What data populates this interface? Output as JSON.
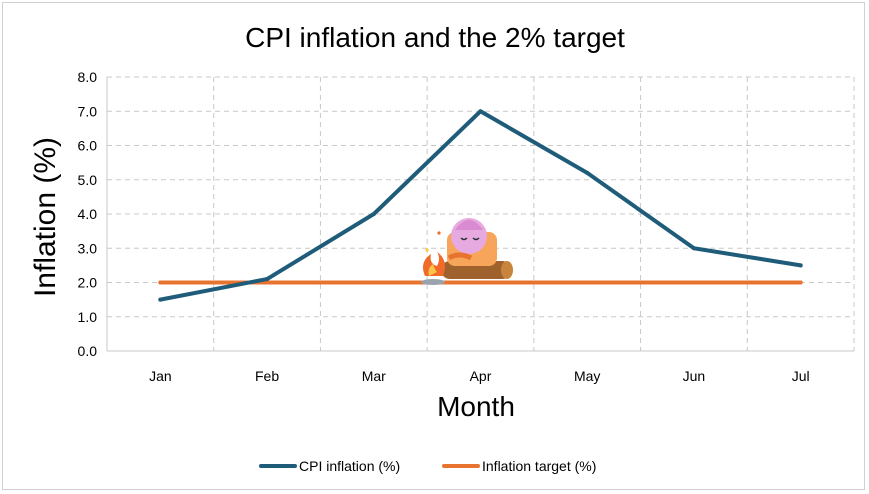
{
  "chart_data": {
    "type": "line",
    "title": "CPI inflation and the 2% target",
    "xlabel": "Month",
    "ylabel": "Inflation (%)",
    "categories": [
      "Jan",
      "Feb",
      "Mar",
      "Apr",
      "May",
      "Jun",
      "Jul"
    ],
    "ylim": [
      0,
      8
    ],
    "ytick_step": 1,
    "ytick_labels": [
      "0.0",
      "1.0",
      "2.0",
      "3.0",
      "4.0",
      "5.0",
      "6.0",
      "7.0",
      "8.0"
    ],
    "grid": true,
    "legend_position": "bottom",
    "series": [
      {
        "name": "CPI inflation (%)",
        "values": [
          1.5,
          2.1,
          4.0,
          7.0,
          5.2,
          3.0,
          2.5
        ],
        "color": "#1f5c7a"
      },
      {
        "name": "Inflation target (%)",
        "values": [
          2.0,
          2.0,
          2.0,
          2.0,
          2.0,
          2.0,
          2.0
        ],
        "color": "#e8732e"
      }
    ]
  },
  "icons": {
    "sticker": "campfire-mascot-icon"
  }
}
